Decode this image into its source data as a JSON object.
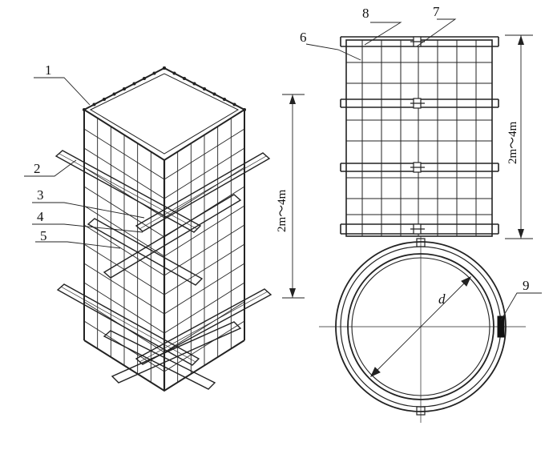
{
  "callouts": {
    "c1": "1",
    "c2": "2",
    "c3": "3",
    "c4": "4",
    "c5": "5",
    "c6": "6",
    "c7": "7",
    "c8": "8",
    "c9": "9"
  },
  "dimensions": {
    "square_height": "2m～4m",
    "round_height": "2m～4m",
    "diameter": "d"
  },
  "colors": {
    "ink": "#222222",
    "background": "#ffffff"
  }
}
